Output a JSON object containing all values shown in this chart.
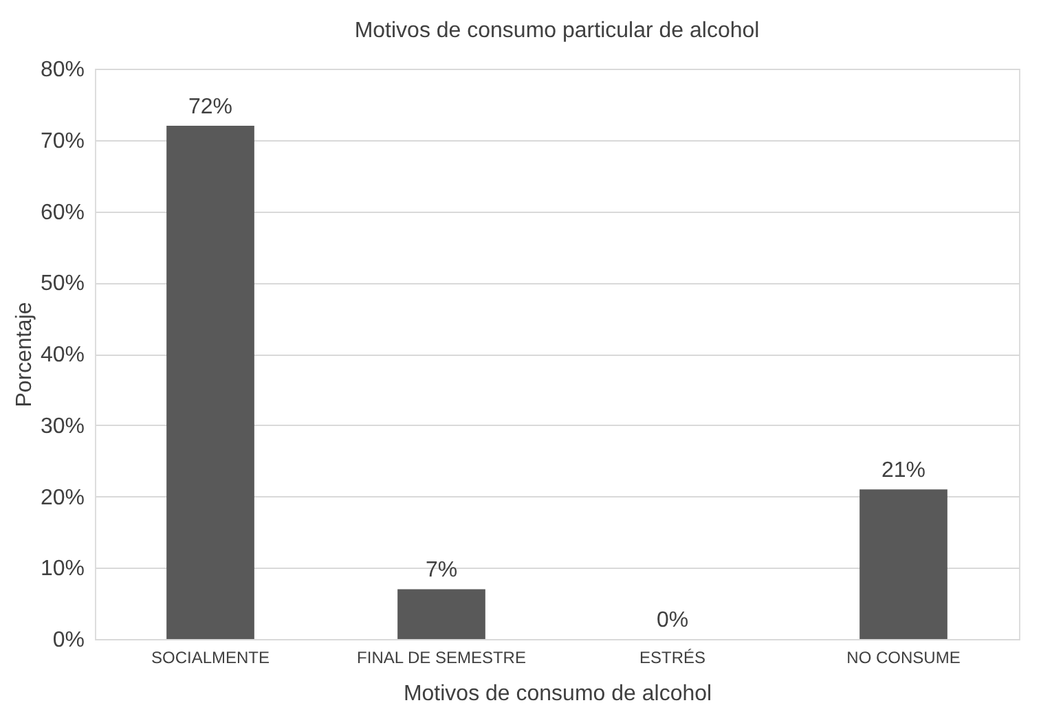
{
  "chart_data": {
    "type": "bar",
    "title": "Motivos de consumo particular de alcohol",
    "xlabel": "Motivos de consumo de alcohol",
    "ylabel": "Porcentaje",
    "categories": [
      "SOCIALMENTE",
      "FINAL DE SEMESTRE",
      "ESTRÉS",
      "NO CONSUME"
    ],
    "values": [
      72,
      7,
      0,
      21
    ],
    "color": "#595959",
    "value_labels": [
      "72%",
      "7%",
      "0%",
      "21%"
    ],
    "ylim": [
      0,
      80
    ],
    "yticks": [
      {
        "value": 0,
        "label": "0%"
      },
      {
        "value": 10,
        "label": "10%"
      },
      {
        "value": 20,
        "label": "20%"
      },
      {
        "value": 30,
        "label": "30%"
      },
      {
        "value": 40,
        "label": "40%"
      },
      {
        "value": 50,
        "label": "50%"
      },
      {
        "value": 60,
        "label": "60%"
      },
      {
        "value": 70,
        "label": "70%"
      },
      {
        "value": 80,
        "label": "80%"
      }
    ],
    "grid": "y"
  }
}
